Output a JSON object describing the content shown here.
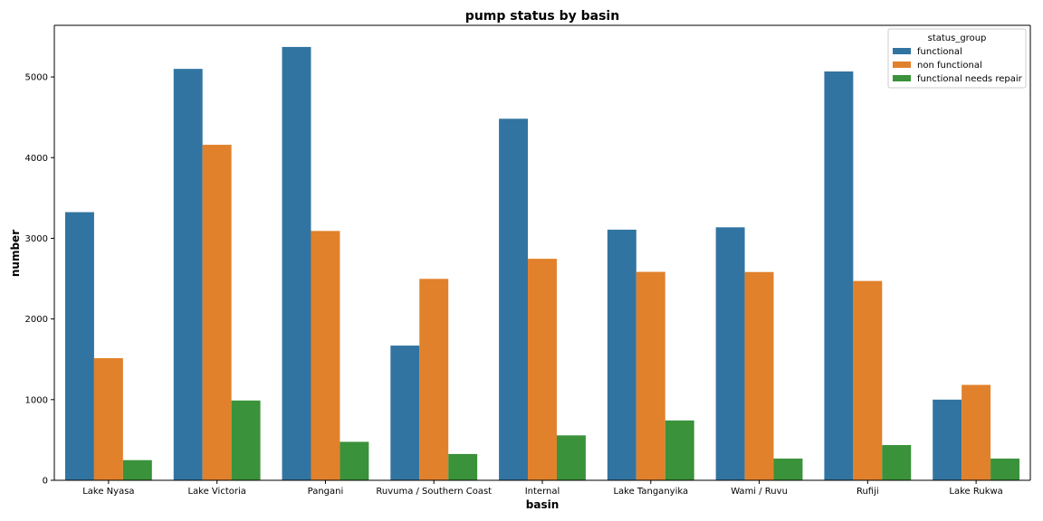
{
  "chart_data": {
    "type": "bar",
    "title": "pump status by basin",
    "xlabel": "basin",
    "ylabel": "number",
    "categories": [
      "Lake Nyasa",
      "Lake Victoria",
      "Pangani",
      "Ruvuma / Southern Coast",
      "Internal",
      "Lake Tanganyika",
      "Wami / Ruvu",
      "Rufiji",
      "Lake Rukwa"
    ],
    "series": [
      {
        "name": "functional",
        "color": "#3274a1",
        "values": [
          3324,
          5100,
          5372,
          1670,
          4482,
          3107,
          3136,
          5068,
          1000
        ]
      },
      {
        "name": "non functional",
        "color": "#e1812c",
        "values": [
          1514,
          4159,
          3091,
          2497,
          2746,
          2584,
          2582,
          2471,
          1183
        ]
      },
      {
        "name": "functional needs repair",
        "color": "#3a923a",
        "values": [
          250,
          989,
          477,
          326,
          557,
          742,
          269,
          437,
          269
        ]
      }
    ],
    "ylim": [
      0,
      5640
    ],
    "yticks": [
      0,
      1000,
      2000,
      3000,
      4000,
      5000
    ],
    "legend": {
      "title": "status_group",
      "placement": "top-right"
    },
    "grid": false
  }
}
